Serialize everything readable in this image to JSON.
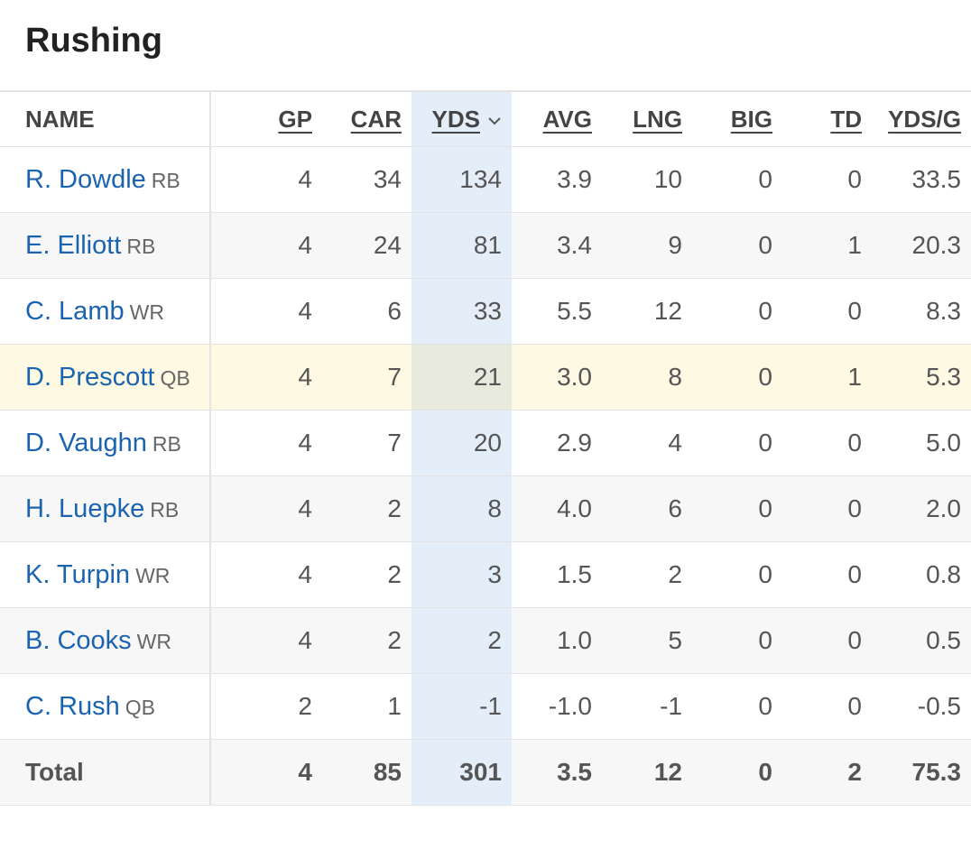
{
  "title": "Rushing",
  "table": {
    "headers": [
      "NAME",
      "GP",
      "CAR",
      "YDS",
      "AVG",
      "LNG",
      "BIG",
      "TD",
      "YDS/G"
    ],
    "rows": [
      {
        "name": "R. Dowdle",
        "pos": "RB",
        "stats": [
          "4",
          "34",
          "134",
          "3.9",
          "10",
          "0",
          "0",
          "33.5"
        ]
      },
      {
        "name": "E. Elliott",
        "pos": "RB",
        "stats": [
          "4",
          "24",
          "81",
          "3.4",
          "9",
          "0",
          "1",
          "20.3"
        ]
      },
      {
        "name": "C. Lamb",
        "pos": "WR",
        "stats": [
          "4",
          "6",
          "33",
          "5.5",
          "12",
          "0",
          "0",
          "8.3"
        ]
      },
      {
        "name": "D. Prescott",
        "pos": "QB",
        "stats": [
          "4",
          "7",
          "21",
          "3.0",
          "8",
          "0",
          "1",
          "5.3"
        ]
      },
      {
        "name": "D. Vaughn",
        "pos": "RB",
        "stats": [
          "4",
          "7",
          "20",
          "2.9",
          "4",
          "0",
          "0",
          "5.0"
        ]
      },
      {
        "name": "H. Luepke",
        "pos": "RB",
        "stats": [
          "4",
          "2",
          "8",
          "4.0",
          "6",
          "0",
          "0",
          "2.0"
        ]
      },
      {
        "name": "K. Turpin",
        "pos": "WR",
        "stats": [
          "4",
          "2",
          "3",
          "1.5",
          "2",
          "0",
          "0",
          "0.8"
        ]
      },
      {
        "name": "B. Cooks",
        "pos": "WR",
        "stats": [
          "4",
          "2",
          "2",
          "1.0",
          "5",
          "0",
          "0",
          "0.5"
        ]
      },
      {
        "name": "C. Rush",
        "pos": "QB",
        "stats": [
          "2",
          "1",
          "-1",
          "-1.0",
          "-1",
          "0",
          "0",
          "-0.5"
        ]
      }
    ],
    "total": {
      "label": "Total",
      "stats": [
        "4",
        "85",
        "301",
        "3.5",
        "12",
        "0",
        "2",
        "75.3"
      ]
    }
  }
}
